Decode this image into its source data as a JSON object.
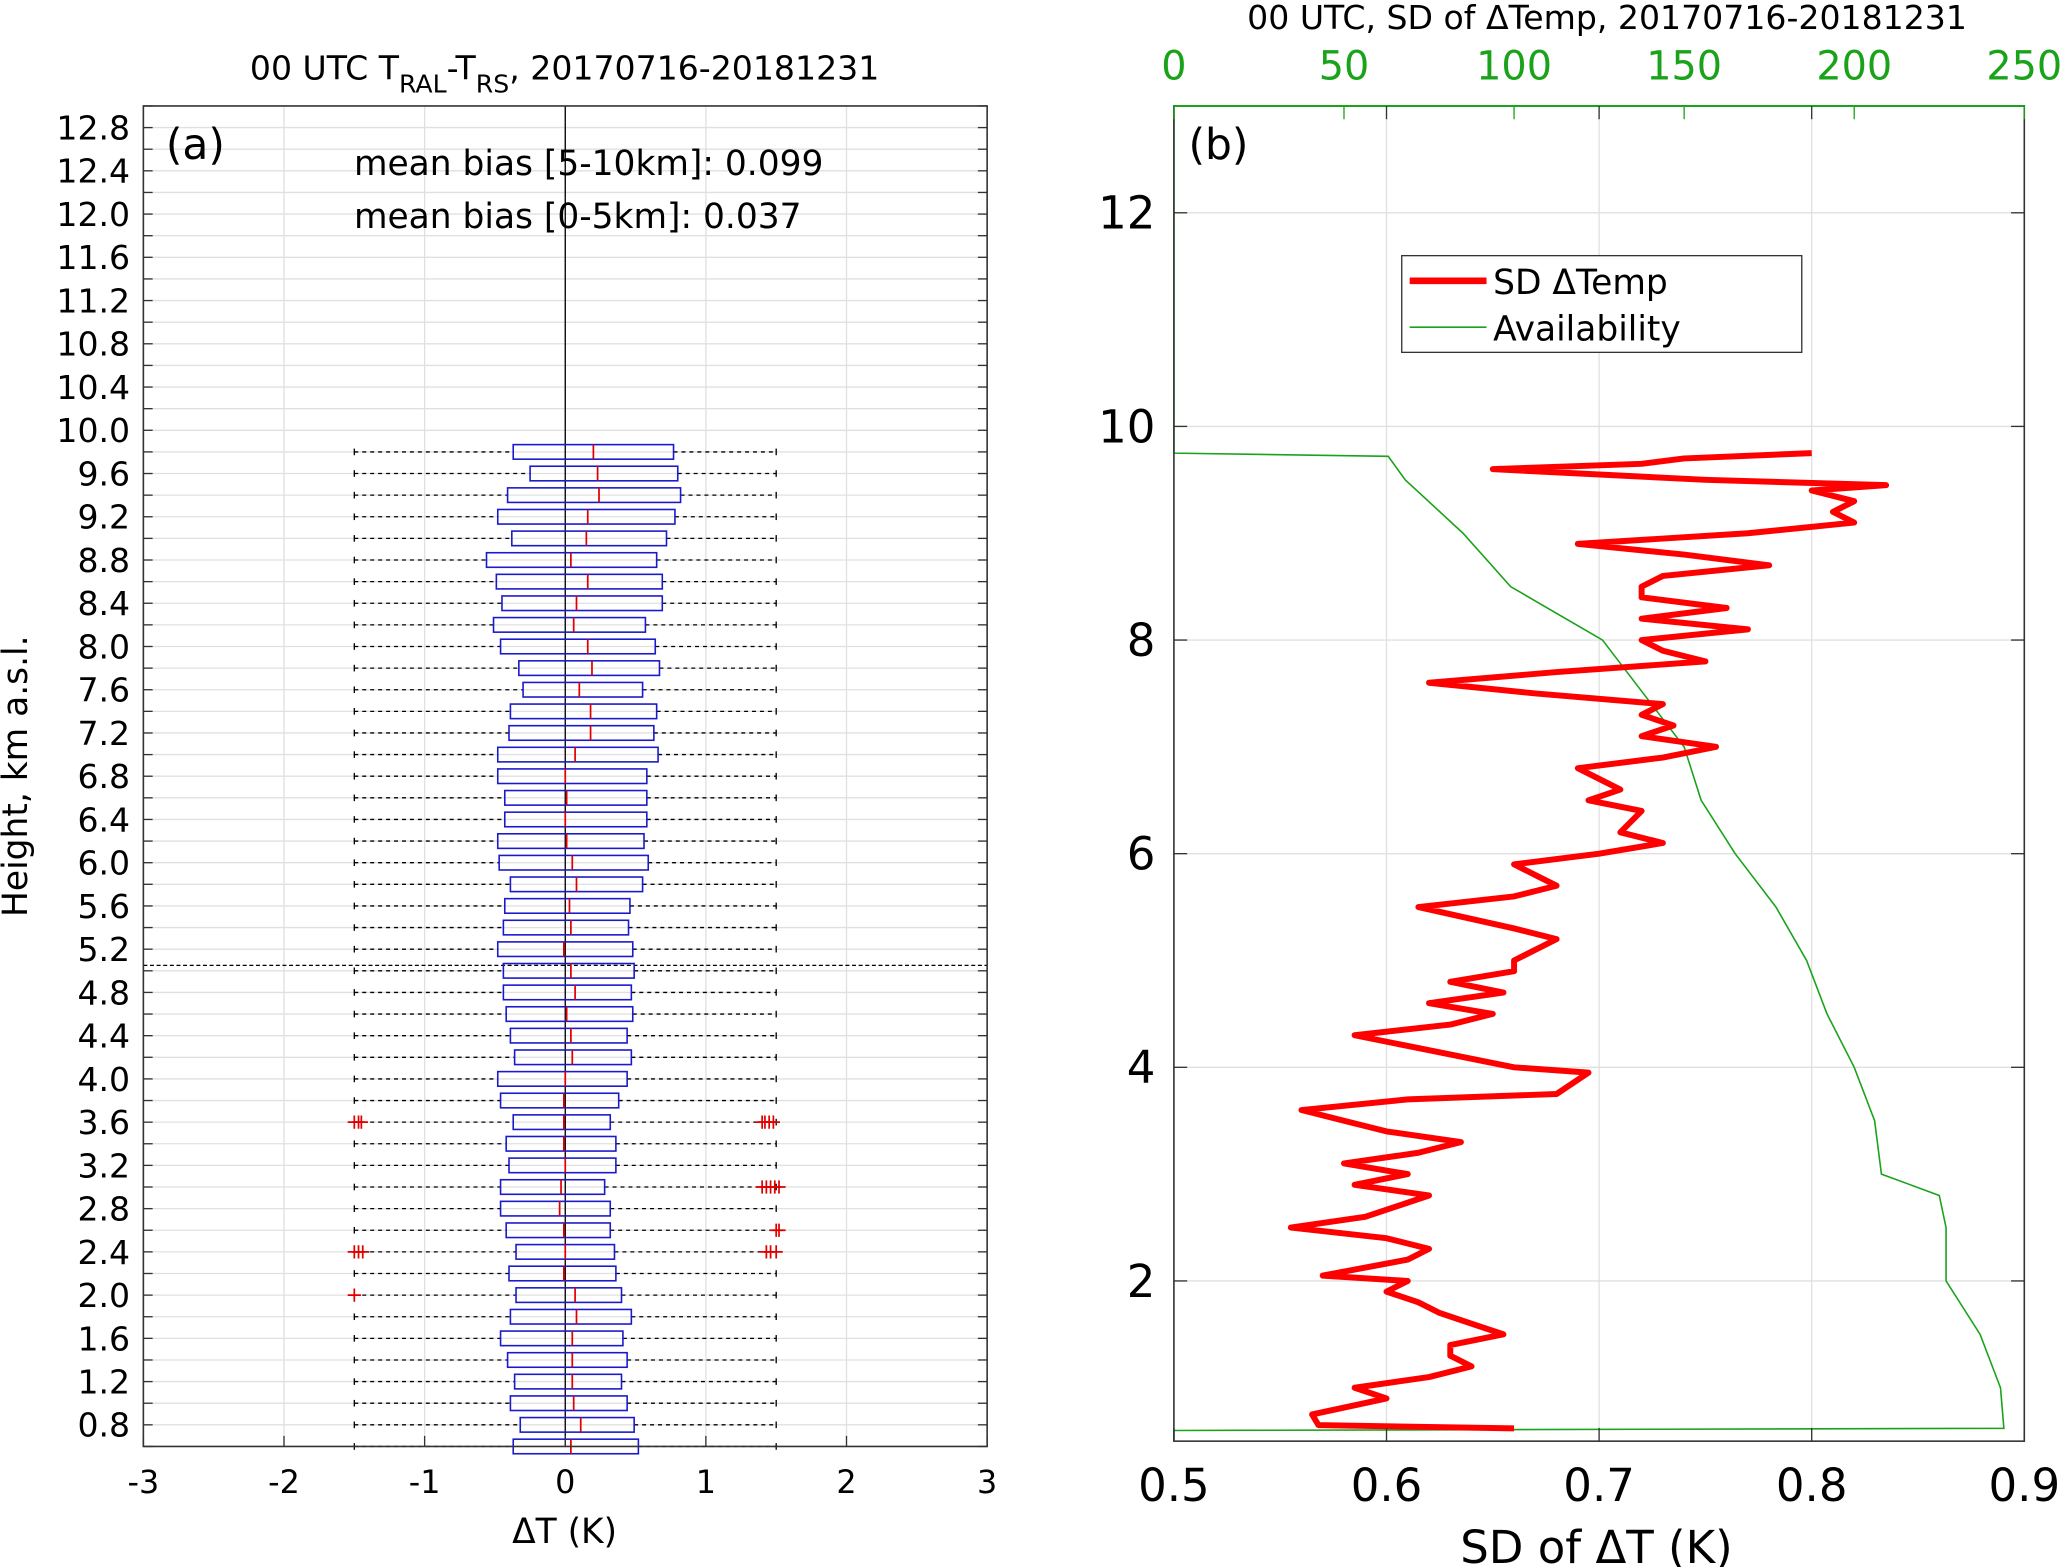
{
  "colors": {
    "box": "#1a1acc",
    "median": "#e00000",
    "whisker": "#000000",
    "sd_line": "#ff0000",
    "availability": "#1aa31a",
    "grid": "#e0e0e0"
  },
  "chart_data": [
    {
      "type": "boxplot",
      "panel_label": "(a)",
      "title_parts": [
        "00 UTC T",
        "RAL",
        "-T",
        "RS",
        ", 20170716-20181231"
      ],
      "xlabel": "ΔT (K)",
      "ylabel": "Height, km a.s.l.",
      "xlim": [
        -3,
        3
      ],
      "ylim": [
        0.6,
        13.0
      ],
      "xticks": [
        "-3",
        "-2",
        "-1",
        "0",
        "1",
        "2",
        "3"
      ],
      "yticks": [
        "0.8",
        "1.2",
        "1.6",
        "2.0",
        "2.4",
        "2.8",
        "3.2",
        "3.6",
        "4.0",
        "4.4",
        "4.8",
        "5.2",
        "5.6",
        "6.0",
        "6.4",
        "6.8",
        "7.2",
        "7.6",
        "8.0",
        "8.4",
        "8.8",
        "9.2",
        "9.6",
        "10.0",
        "10.4",
        "10.8",
        "11.2",
        "11.6",
        "12.0",
        "12.4",
        "12.8"
      ],
      "grid": true,
      "annotations": [
        "mean bias [5-10km]: 0.099",
        "mean bias [0-5km]: 0.037"
      ],
      "separator_height_km": 5.05,
      "boxes": {
        "heights": [
          9.8,
          9.6,
          9.4,
          9.2,
          9.0,
          8.8,
          8.6,
          8.4,
          8.2,
          8.0,
          7.8,
          7.6,
          7.4,
          7.2,
          7.0,
          6.8,
          6.6,
          6.4,
          6.2,
          6.0,
          5.8,
          5.6,
          5.4,
          5.2,
          5.0,
          4.8,
          4.6,
          4.4,
          4.2,
          4.0,
          3.8,
          3.6,
          3.4,
          3.2,
          3.0,
          2.8,
          2.6,
          2.4,
          2.2,
          2.0,
          1.8,
          1.6,
          1.4,
          1.2,
          1.0,
          0.8,
          0.6
        ],
        "q1": [
          -0.37,
          -0.25,
          -0.41,
          -0.48,
          -0.38,
          -0.56,
          -0.49,
          -0.45,
          -0.51,
          -0.46,
          -0.33,
          -0.3,
          -0.39,
          -0.4,
          -0.48,
          -0.48,
          -0.43,
          -0.43,
          -0.48,
          -0.47,
          -0.39,
          -0.43,
          -0.44,
          -0.48,
          -0.44,
          -0.44,
          -0.42,
          -0.39,
          -0.36,
          -0.48,
          -0.46,
          -0.37,
          -0.42,
          -0.4,
          -0.46,
          -0.46,
          -0.42,
          -0.35,
          -0.4,
          -0.35,
          -0.39,
          -0.46,
          -0.41,
          -0.36,
          -0.39,
          -0.32,
          -0.37
        ],
        "median": [
          0.2,
          0.23,
          0.24,
          0.16,
          0.15,
          0.04,
          0.16,
          0.08,
          0.06,
          0.16,
          0.19,
          0.1,
          0.18,
          0.18,
          0.07,
          0.0,
          0.01,
          0.0,
          0.01,
          0.05,
          0.08,
          0.03,
          0.04,
          -0.01,
          0.04,
          0.07,
          0.01,
          0.04,
          0.05,
          0.0,
          -0.01,
          -0.01,
          -0.01,
          0.0,
          -0.03,
          -0.04,
          -0.01,
          0.0,
          -0.01,
          0.07,
          0.08,
          0.05,
          0.05,
          0.05,
          0.06,
          0.11,
          0.04
        ],
        "q3": [
          0.77,
          0.8,
          0.82,
          0.78,
          0.72,
          0.65,
          0.69,
          0.69,
          0.57,
          0.64,
          0.67,
          0.55,
          0.65,
          0.63,
          0.66,
          0.58,
          0.58,
          0.58,
          0.56,
          0.59,
          0.55,
          0.46,
          0.45,
          0.48,
          0.49,
          0.47,
          0.48,
          0.44,
          0.47,
          0.44,
          0.38,
          0.32,
          0.36,
          0.36,
          0.28,
          0.32,
          0.32,
          0.35,
          0.36,
          0.4,
          0.47,
          0.41,
          0.44,
          0.4,
          0.44,
          0.49,
          0.52
        ],
        "whisker_low": -1.5,
        "whisker_high": 1.5
      },
      "outliers": [
        {
          "h": 3.6,
          "values": [
            -1.5,
            -1.47,
            -1.45,
            1.4,
            1.42,
            1.45,
            1.48
          ]
        },
        {
          "h": 3.0,
          "values": [
            1.4,
            1.43,
            1.46,
            1.49,
            1.52
          ]
        },
        {
          "h": 2.6,
          "values": [
            1.5,
            1.52
          ]
        },
        {
          "h": 2.4,
          "values": [
            -1.5,
            -1.47,
            -1.44,
            1.43,
            1.46,
            1.5
          ]
        },
        {
          "h": 2.0,
          "values": [
            -1.5
          ]
        }
      ]
    },
    {
      "type": "line",
      "panel_label": "(b)",
      "title": "00 UTC, SD of ΔTemp, 20170716-20181231",
      "xlabel": "SD of ΔT (K)",
      "xlim": [
        0.5,
        0.9
      ],
      "xticks": [
        "0.5",
        "0.6",
        "0.7",
        "0.8",
        "0.9"
      ],
      "x2lim": [
        0,
        250
      ],
      "x2ticks": [
        "0",
        "50",
        "100",
        "150",
        "200",
        "250"
      ],
      "ylim": [
        0.5,
        13.0
      ],
      "yticks": [
        "2",
        "4",
        "6",
        "8",
        "10",
        "12"
      ],
      "grid": true,
      "legend_placement": "upper-center",
      "series": [
        {
          "name": "SD ΔTemp",
          "axis": "bottom",
          "h": [
            0.62,
            0.65,
            0.75,
            0.9,
            1.0,
            1.1,
            1.2,
            1.3,
            1.4,
            1.5,
            1.6,
            1.7,
            1.8,
            1.9,
            2.0,
            2.05,
            2.2,
            2.3,
            2.4,
            2.5,
            2.6,
            2.8,
            2.9,
            3.0,
            3.1,
            3.2,
            3.3,
            3.4,
            3.5,
            3.6,
            3.7,
            3.75,
            3.95,
            4.0,
            4.2,
            4.3,
            4.4,
            4.5,
            4.6,
            4.7,
            4.8,
            4.9,
            5.0,
            5.2,
            5.3,
            5.5,
            5.6,
            5.7,
            5.8,
            5.9,
            6.0,
            6.1,
            6.2,
            6.4,
            6.5,
            6.6,
            6.8,
            6.9,
            7.0,
            7.1,
            7.2,
            7.3,
            7.4,
            7.5,
            7.6,
            7.7,
            7.8,
            7.9,
            8.0,
            8.1,
            8.2,
            8.3,
            8.4,
            8.5,
            8.6,
            8.7,
            8.8,
            8.9,
            9.0,
            9.1,
            9.2,
            9.3,
            9.4,
            9.45,
            9.5,
            9.6,
            9.65,
            9.7,
            9.75
          ],
          "sd": [
            0.66,
            0.568,
            0.565,
            0.6,
            0.585,
            0.62,
            0.64,
            0.63,
            0.63,
            0.655,
            0.64,
            0.625,
            0.615,
            0.6,
            0.61,
            0.57,
            0.61,
            0.62,
            0.6,
            0.555,
            0.59,
            0.62,
            0.585,
            0.61,
            0.58,
            0.615,
            0.635,
            0.6,
            0.58,
            0.56,
            0.61,
            0.68,
            0.695,
            0.66,
            0.61,
            0.585,
            0.63,
            0.65,
            0.62,
            0.655,
            0.63,
            0.66,
            0.66,
            0.68,
            0.66,
            0.615,
            0.66,
            0.68,
            0.67,
            0.66,
            0.7,
            0.73,
            0.71,
            0.72,
            0.695,
            0.71,
            0.69,
            0.73,
            0.755,
            0.72,
            0.735,
            0.72,
            0.73,
            0.67,
            0.62,
            0.68,
            0.75,
            0.73,
            0.72,
            0.77,
            0.72,
            0.76,
            0.72,
            0.72,
            0.73,
            0.78,
            0.74,
            0.69,
            0.77,
            0.82,
            0.81,
            0.82,
            0.8,
            0.835,
            0.75,
            0.65,
            0.72,
            0.74,
            0.8
          ]
        },
        {
          "name": "Availability",
          "axis": "top",
          "h": [
            0.5,
            0.6,
            0.62,
            1.0,
            1.5,
            2.0,
            2.5,
            2.8,
            3.0,
            3.5,
            4.0,
            4.5,
            5.0,
            5.5,
            6.0,
            6.5,
            7.0,
            7.5,
            8.0,
            8.5,
            9.0,
            9.5,
            9.72,
            9.75,
            13.0
          ],
          "count": [
            0,
            0,
            244,
            243,
            237,
            227,
            227,
            225,
            208,
            206,
            200,
            192,
            186,
            177,
            165,
            155,
            150,
            138,
            126,
            99,
            85,
            68,
            63,
            0,
            0
          ]
        }
      ]
    }
  ]
}
